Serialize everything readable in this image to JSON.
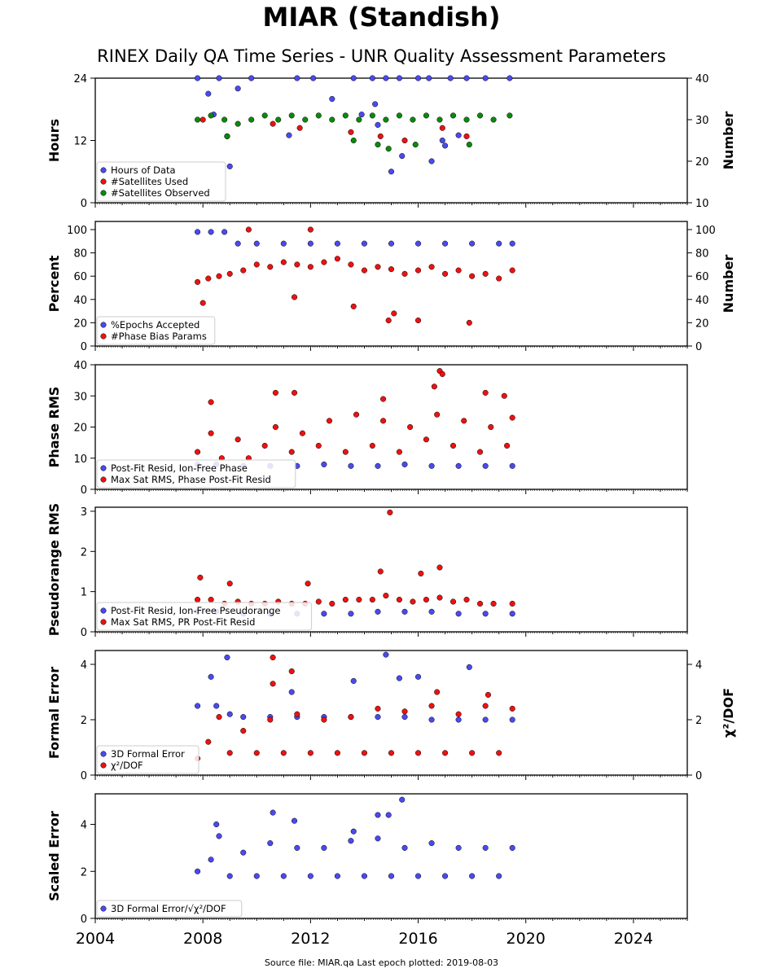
{
  "title": "MIAR (Standish)",
  "subtitle": "RINEX Daily QA Time Series - UNR Quality Assessment Parameters",
  "footer": "Source file: MIAR.qa Last epoch plotted: 2019-08-03",
  "colors": {
    "blue": "#4a4af0",
    "red": "#ee1111",
    "green": "#0a8a0a",
    "edge": "#000000"
  },
  "chart_data": [
    {
      "type": "scatter",
      "panel": "hours",
      "xlabel": "",
      "xlim": [
        2004,
        2026
      ],
      "x_ticks": [
        "2004",
        "2008",
        "2012",
        "2016",
        "2020",
        "2024"
      ],
      "ylabel": "Hours",
      "ylim": [
        0,
        24
      ],
      "y_ticks": [
        "0",
        "12",
        "24"
      ],
      "y2label": "Number",
      "y2lim": [
        10,
        40
      ],
      "y2_ticks": [
        "10",
        "20",
        "30",
        "40"
      ],
      "legend": "bottom-left",
      "series": [
        {
          "name": "Hours of Data",
          "color": "blue",
          "axis": "left",
          "x": [
            2007.8,
            2008.6,
            2009.8,
            2011.5,
            2012.1,
            2013.6,
            2014.3,
            2014.8,
            2015.3,
            2016.0,
            2016.4,
            2017.2,
            2017.8,
            2018.5,
            2019.4,
            2008.2,
            2009.0,
            2011.2,
            2012.8,
            2014.5,
            2015.0,
            2016.5,
            2017.5,
            2013.9,
            2014.4,
            2015.4,
            2016.9,
            2009.3,
            2017.0,
            2008.4
          ],
          "y": [
            24,
            24,
            24,
            24,
            24,
            24,
            24,
            24,
            24,
            24,
            24,
            24,
            24,
            24,
            24,
            21,
            7,
            13,
            20,
            15,
            6,
            8,
            13,
            17,
            19,
            9,
            12,
            22,
            11,
            17
          ]
        },
        {
          "name": "#Satellites Used",
          "color": "red",
          "axis": "right",
          "x": [
            2008.0,
            2008.9,
            2010.6,
            2011.6,
            2013.5,
            2014.6,
            2015.5,
            2016.9,
            2017.8
          ],
          "y": [
            30,
            26,
            29,
            28,
            27,
            26,
            25,
            28,
            26
          ]
        },
        {
          "name": "#Satellites Observed",
          "color": "green",
          "axis": "right",
          "x": [
            2007.8,
            2008.3,
            2008.8,
            2009.3,
            2009.8,
            2010.3,
            2010.8,
            2011.3,
            2011.8,
            2012.3,
            2012.8,
            2013.3,
            2013.8,
            2014.3,
            2014.8,
            2015.3,
            2015.8,
            2016.3,
            2016.8,
            2017.3,
            2017.8,
            2018.3,
            2018.8,
            2019.4,
            2013.6,
            2014.5,
            2014.9,
            2015.9,
            2017.9,
            2008.9
          ],
          "y": [
            30,
            31,
            30,
            29,
            30,
            31,
            30,
            31,
            30,
            31,
            30,
            31,
            30,
            31,
            30,
            31,
            30,
            31,
            30,
            31,
            30,
            31,
            30,
            31,
            25,
            24,
            23,
            24,
            24,
            26
          ]
        }
      ]
    },
    {
      "type": "scatter",
      "panel": "percent",
      "xlim": [
        2004,
        2026
      ],
      "x_ticks": [
        "2004",
        "2008",
        "2012",
        "2016",
        "2020",
        "2024"
      ],
      "ylabel": "Percent",
      "ylim": [
        0,
        107
      ],
      "y_ticks": [
        "0",
        "20",
        "40",
        "60",
        "80",
        "100"
      ],
      "y2label": "Number",
      "y2lim": [
        0,
        107
      ],
      "y2_ticks": [
        "0",
        "20",
        "40",
        "60",
        "80",
        "100"
      ],
      "legend": "bottom-left",
      "series": [
        {
          "name": "%Epochs Accepted",
          "color": "blue",
          "axis": "left",
          "x": [
            2007.8,
            2008.3,
            2008.8,
            2009.3,
            2010.0,
            2011.0,
            2012.0,
            2013.0,
            2014.0,
            2015.0,
            2016.0,
            2017.0,
            2018.0,
            2019.0,
            2019.5
          ],
          "y": [
            98,
            98,
            98,
            88,
            88,
            88,
            88,
            88,
            88,
            88,
            88,
            88,
            88,
            88,
            88
          ]
        },
        {
          "name": "#Phase Bias Params",
          "color": "red",
          "axis": "right",
          "x": [
            2007.8,
            2008.2,
            2008.6,
            2009.0,
            2009.5,
            2010.0,
            2010.5,
            2011.0,
            2011.5,
            2012.0,
            2012.5,
            2013.0,
            2013.5,
            2014.0,
            2014.5,
            2015.0,
            2015.5,
            2016.0,
            2016.5,
            2017.0,
            2017.5,
            2018.0,
            2018.5,
            2019.0,
            2019.5,
            2009.7,
            2012.0,
            2013.6,
            2014.9,
            2015.1,
            2016.0,
            2017.9,
            2011.4,
            2008.0
          ],
          "y": [
            55,
            58,
            60,
            62,
            65,
            70,
            68,
            72,
            70,
            68,
            72,
            75,
            70,
            65,
            68,
            66,
            62,
            65,
            68,
            62,
            65,
            60,
            62,
            58,
            65,
            100,
            100,
            34,
            22,
            28,
            22,
            20,
            42,
            37
          ]
        }
      ]
    },
    {
      "type": "scatter",
      "panel": "phase_rms",
      "xlim": [
        2004,
        2026
      ],
      "x_ticks": [
        "2004",
        "2008",
        "2012",
        "2016",
        "2020",
        "2024"
      ],
      "ylabel": "Phase RMS",
      "ylim": [
        0,
        40
      ],
      "y_ticks": [
        "0",
        "10",
        "20",
        "30",
        "40"
      ],
      "legend": "bottom-left",
      "series": [
        {
          "name": "Post-Fit Resid, Ion-Free Phase",
          "color": "blue",
          "axis": "left",
          "x": [
            2007.8,
            2008.5,
            2009.5,
            2010.5,
            2011.5,
            2012.5,
            2013.5,
            2014.5,
            2015.5,
            2016.5,
            2017.5,
            2018.5,
            2019.5
          ],
          "y": [
            8,
            8,
            7.5,
            7.5,
            7.5,
            8,
            7.5,
            7.5,
            8,
            7.5,
            7.5,
            7.5,
            7.5
          ]
        },
        {
          "name": "Max Sat RMS, Phase Post-Fit Resid",
          "color": "red",
          "axis": "left",
          "x": [
            2007.8,
            2008.3,
            2008.7,
            2009.3,
            2009.7,
            2010.3,
            2010.7,
            2011.3,
            2011.7,
            2012.3,
            2012.7,
            2013.3,
            2013.7,
            2014.3,
            2014.7,
            2015.3,
            2015.7,
            2016.3,
            2016.7,
            2017.3,
            2017.7,
            2018.3,
            2018.7,
            2019.3,
            2019.5,
            2016.8,
            2016.9,
            2016.6,
            2018.5,
            2019.2,
            2010.7,
            2011.4,
            2008.3,
            2014.7
          ],
          "y": [
            12,
            18,
            10,
            16,
            10,
            14,
            20,
            12,
            18,
            14,
            22,
            12,
            24,
            14,
            22,
            12,
            20,
            16,
            24,
            14,
            22,
            12,
            20,
            14,
            23,
            38,
            37,
            33,
            31,
            30,
            31,
            31,
            28,
            29
          ]
        }
      ]
    },
    {
      "type": "scatter",
      "panel": "pseudorange_rms",
      "xlim": [
        2004,
        2026
      ],
      "x_ticks": [
        "2004",
        "2008",
        "2012",
        "2016",
        "2020",
        "2024"
      ],
      "ylabel": "Pseudorange RMS",
      "ylim": [
        0,
        3.1
      ],
      "y_ticks": [
        "0",
        "1",
        "2",
        "3"
      ],
      "legend": "bottom-left",
      "series": [
        {
          "name": "Post-Fit Resid, Ion-Free Pseudorange",
          "color": "blue",
          "axis": "left",
          "x": [
            2007.8,
            2008.5,
            2009.5,
            2010.5,
            2011.5,
            2012.5,
            2013.5,
            2014.5,
            2015.5,
            2016.5,
            2017.5,
            2018.5,
            2019.5
          ],
          "y": [
            0.5,
            0.5,
            0.45,
            0.45,
            0.45,
            0.45,
            0.45,
            0.5,
            0.5,
            0.5,
            0.45,
            0.45,
            0.45
          ]
        },
        {
          "name": "Max Sat RMS, PR Post-Fit Resid",
          "color": "red",
          "axis": "left",
          "x": [
            2007.8,
            2008.3,
            2008.8,
            2009.3,
            2009.8,
            2010.3,
            2010.8,
            2011.3,
            2011.8,
            2012.3,
            2012.8,
            2013.3,
            2013.8,
            2014.3,
            2014.8,
            2015.3,
            2015.8,
            2016.3,
            2016.8,
            2017.3,
            2017.8,
            2018.3,
            2018.8,
            2019.5,
            2014.95,
            2014.6,
            2016.8,
            2016.1,
            2007.9,
            2011.9,
            2009.0
          ],
          "y": [
            0.8,
            0.8,
            0.7,
            0.75,
            0.7,
            0.7,
            0.75,
            0.7,
            0.7,
            0.75,
            0.7,
            0.8,
            0.8,
            0.8,
            0.9,
            0.8,
            0.75,
            0.8,
            0.85,
            0.75,
            0.8,
            0.7,
            0.7,
            0.7,
            2.97,
            1.5,
            1.6,
            1.45,
            1.35,
            1.2,
            1.2
          ]
        }
      ]
    },
    {
      "type": "scatter",
      "panel": "formal_error",
      "xlim": [
        2004,
        2026
      ],
      "x_ticks": [
        "2004",
        "2008",
        "2012",
        "2016",
        "2020",
        "2024"
      ],
      "ylabel": "Formal Error",
      "ylim": [
        0,
        4.5
      ],
      "y_ticks": [
        "0",
        "2",
        "4"
      ],
      "y2label": "χ²/DOF",
      "y2lim": [
        0,
        4.5
      ],
      "y2_ticks": [
        "0",
        "2",
        "4"
      ],
      "legend": "bottom-left",
      "series": [
        {
          "name": "3D Formal Error",
          "color": "blue",
          "axis": "left",
          "x": [
            2007.8,
            2008.5,
            2009.0,
            2009.5,
            2010.5,
            2011.5,
            2012.5,
            2013.5,
            2014.5,
            2015.5,
            2016.5,
            2017.5,
            2018.5,
            2019.5,
            2014.8,
            2015.3,
            2008.9,
            2011.3,
            2013.6,
            2016.0,
            2017.9,
            2008.3
          ],
          "y": [
            2.5,
            2.5,
            2.2,
            2.1,
            2.1,
            2.1,
            2.1,
            2.1,
            2.1,
            2.1,
            2.0,
            2.0,
            2.0,
            2.0,
            4.35,
            3.5,
            4.25,
            3.0,
            3.4,
            3.55,
            3.9,
            3.55
          ]
        },
        {
          "name": "χ²/DOF",
          "color": "red",
          "axis": "right",
          "x": [
            2007.8,
            2008.2,
            2008.6,
            2009.0,
            2009.5,
            2010.0,
            2010.5,
            2011.0,
            2011.5,
            2012.0,
            2012.5,
            2013.0,
            2013.5,
            2014.0,
            2014.5,
            2015.0,
            2015.5,
            2016.0,
            2016.5,
            2017.0,
            2017.5,
            2018.0,
            2018.5,
            2019.0,
            2019.5,
            2010.6,
            2010.6,
            2011.3,
            2016.7,
            2018.6
          ],
          "y": [
            0.6,
            1.2,
            2.1,
            0.8,
            1.6,
            0.8,
            2.0,
            0.8,
            2.2,
            0.8,
            2.0,
            0.8,
            2.1,
            0.8,
            2.4,
            0.8,
            2.3,
            0.8,
            2.5,
            0.8,
            2.2,
            0.8,
            2.5,
            0.8,
            2.4,
            4.25,
            3.3,
            3.75,
            3.0,
            2.9
          ]
        }
      ]
    },
    {
      "type": "scatter",
      "panel": "scaled_error",
      "xlim": [
        2004,
        2026
      ],
      "x_ticks": [
        "2004",
        "2008",
        "2012",
        "2016",
        "2020",
        "2024"
      ],
      "ylabel": "Scaled Error",
      "ylim": [
        0,
        5.3
      ],
      "y_ticks": [
        "0",
        "2",
        "4"
      ],
      "legend": "bottom-left",
      "series": [
        {
          "name": "3D Formal Error/√χ²/DOF",
          "color": "blue",
          "axis": "left",
          "x": [
            2007.8,
            2008.3,
            2008.6,
            2009.0,
            2009.5,
            2010.0,
            2010.5,
            2011.0,
            2011.5,
            2012.0,
            2012.5,
            2013.0,
            2013.5,
            2014.0,
            2014.5,
            2015.0,
            2015.5,
            2016.0,
            2016.5,
            2017.0,
            2017.5,
            2018.0,
            2018.5,
            2019.0,
            2019.5,
            2015.4,
            2014.5,
            2014.9,
            2010.6,
            2011.4,
            2008.5,
            2013.6
          ],
          "y": [
            2.0,
            2.5,
            3.5,
            1.8,
            2.8,
            1.8,
            3.2,
            1.8,
            3.0,
            1.8,
            3.0,
            1.8,
            3.3,
            1.8,
            3.4,
            1.8,
            3.0,
            1.8,
            3.2,
            1.8,
            3.0,
            1.8,
            3.0,
            1.8,
            3.0,
            5.05,
            4.4,
            4.4,
            4.5,
            4.15,
            4.0,
            3.7
          ]
        }
      ]
    }
  ]
}
